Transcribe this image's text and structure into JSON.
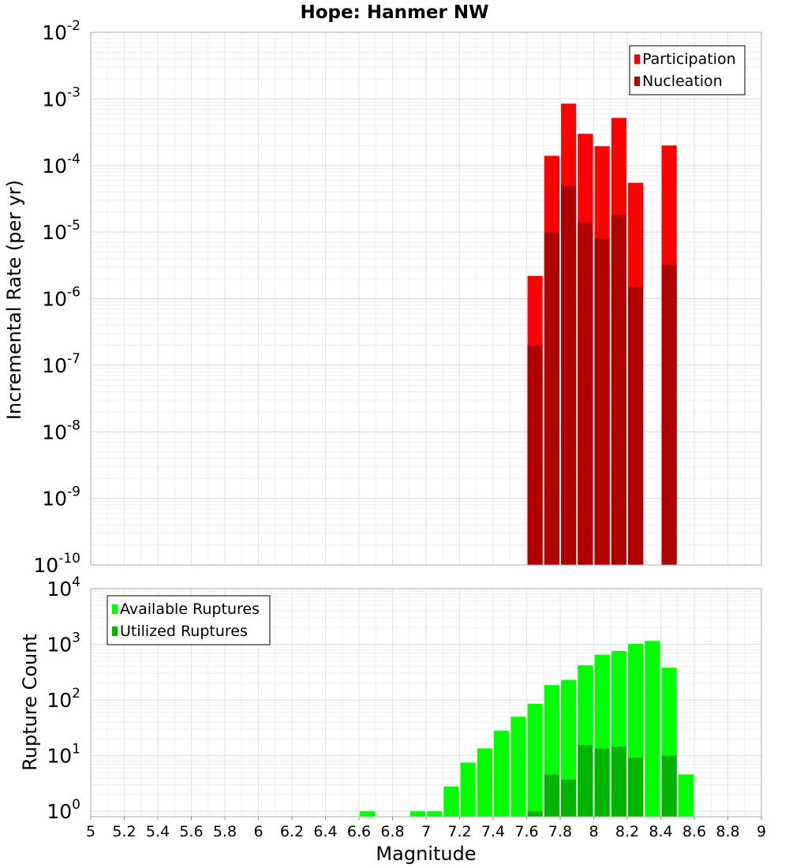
{
  "chart_data": [
    {
      "type": "bar",
      "title": "Hope: Hanmer NW",
      "ylabel": "Incremental Rate (per yr)",
      "xlabel": "",
      "xlim": [
        5,
        9
      ],
      "ylim": [
        1e-10,
        0.01
      ],
      "y_scale": "log",
      "y_tick_exponents": [
        -10,
        -9,
        -8,
        -7,
        -6,
        -5,
        -4,
        -3,
        -2
      ],
      "bar_width": 0.09,
      "grid": true,
      "legend_position": "top-right",
      "series": [
        {
          "name": "Participation",
          "color": "#ff0000",
          "x": [
            7.65,
            7.75,
            7.85,
            7.95,
            8.05,
            8.15,
            8.25,
            8.45
          ],
          "values": [
            2.2e-06,
            0.00014,
            0.00085,
            0.0003,
            0.000195,
            0.00052,
            5.5e-05,
            0.0002
          ]
        },
        {
          "name": "Nucleation",
          "color": "#b00000",
          "x": [
            7.65,
            7.75,
            7.85,
            7.95,
            8.05,
            8.15,
            8.25,
            8.45
          ],
          "values": [
            2e-07,
            1e-05,
            5e-05,
            1.4e-05,
            8e-06,
            1.8e-05,
            1.5e-06,
            3.3e-06
          ]
        }
      ]
    },
    {
      "type": "bar",
      "title": "",
      "ylabel": "Rupture Count",
      "xlabel": "Magnitude",
      "xlim": [
        5,
        9
      ],
      "ylim": [
        0.8,
        10000.0
      ],
      "y_scale": "log",
      "y_tick_exponents": [
        0,
        1,
        2,
        3,
        4
      ],
      "x_tick_labels": [
        "5",
        "5.2",
        "5.4",
        "5.6",
        "5.8",
        "6",
        "6.2",
        "6.4",
        "6.6",
        "6.8",
        "7",
        "7.2",
        "7.4",
        "7.6",
        "7.8",
        "8",
        "8.2",
        "8.4",
        "8.6",
        "8.8",
        "9"
      ],
      "bar_width": 0.09,
      "grid": true,
      "legend_position": "top-left",
      "series": [
        {
          "name": "Available Ruptures",
          "color": "#00ff00",
          "x": [
            6.65,
            6.95,
            7.05,
            7.15,
            7.25,
            7.35,
            7.45,
            7.55,
            7.65,
            7.75,
            7.85,
            7.95,
            8.05,
            8.15,
            8.25,
            8.35,
            8.45,
            8.55
          ],
          "values": [
            1,
            1,
            1,
            2.8,
            7.5,
            13.5,
            28,
            50,
            85,
            185,
            230,
            420,
            650,
            760,
            1020,
            1150,
            380,
            4.6
          ]
        },
        {
          "name": "Utilized Ruptures",
          "color": "#00b400",
          "x": [
            7.65,
            7.75,
            7.85,
            7.95,
            8.05,
            8.15,
            8.25,
            8.45
          ],
          "values": [
            1,
            4.6,
            3.7,
            15.5,
            13.5,
            14.5,
            9.2,
            10
          ]
        }
      ]
    }
  ]
}
